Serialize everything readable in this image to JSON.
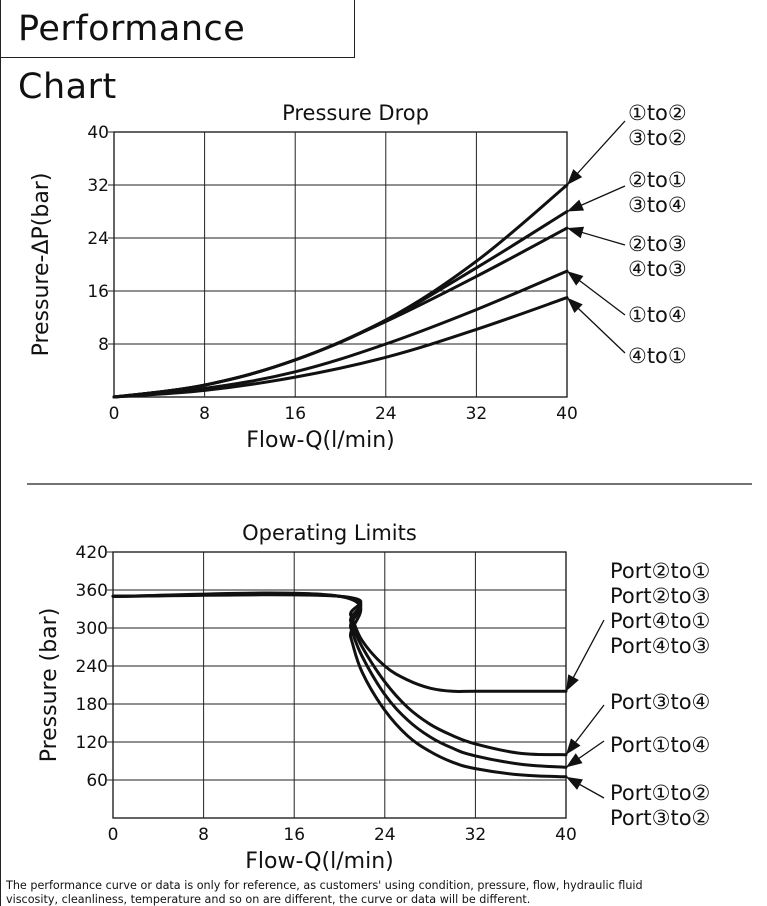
{
  "page_title": "Performance Chart",
  "footnote": {
    "line1": "The performance curve or data is only for reference, as customers' using condition, pressure, flow, hydraulic fluid",
    "line2": "viscosity, cleanliness, temperature and so on are different, the curve or data will be different."
  },
  "chart_data": [
    {
      "type": "line",
      "title": "Pressure Drop",
      "xlabel": "Flow-Q(l/min)",
      "ylabel": "Pressure-ΔP(bar)",
      "xlim": [
        0,
        40
      ],
      "ylim": [
        0,
        40
      ],
      "xticks": [
        0,
        8,
        16,
        24,
        32,
        40
      ],
      "yticks": [
        8,
        16,
        24,
        32,
        40
      ],
      "xtick_labels": [
        "0",
        "8",
        "16",
        "24",
        "32",
        "40"
      ],
      "ytick_labels": [
        "8",
        "16",
        "24",
        "32",
        "40"
      ],
      "grid": true,
      "series": [
        {
          "name": "①to② ③to②",
          "x": [
            0,
            8,
            16,
            24,
            32,
            40
          ],
          "y": [
            0,
            1.8,
            5.6,
            11.6,
            20.5,
            32
          ]
        },
        {
          "name": "②to① ③to④",
          "x": [
            0,
            8,
            16,
            24,
            32,
            40
          ],
          "y": [
            0,
            1.8,
            5.6,
            11.6,
            19.5,
            28
          ]
        },
        {
          "name": "②to③ ④to③",
          "x": [
            0,
            8,
            16,
            24,
            32,
            40
          ],
          "y": [
            0,
            1.8,
            5.6,
            11.4,
            18.2,
            25.5
          ]
        },
        {
          "name": "①to④",
          "x": [
            0,
            8,
            16,
            24,
            32,
            40
          ],
          "y": [
            0,
            1.3,
            3.8,
            8,
            13.2,
            19
          ]
        },
        {
          "name": "④to①",
          "x": [
            0,
            8,
            16,
            24,
            32,
            40
          ],
          "y": [
            0,
            1,
            3,
            6,
            10.2,
            15
          ]
        }
      ]
    },
    {
      "type": "line",
      "title": "Operating Limits",
      "xlabel": "Flow-Q(l/min)",
      "ylabel": "Pressure (bar)",
      "xlim": [
        0,
        40
      ],
      "ylim": [
        0,
        420
      ],
      "xticks": [
        0,
        8,
        16,
        24,
        32,
        40
      ],
      "yticks": [
        60,
        120,
        180,
        240,
        300,
        360,
        420
      ],
      "xtick_labels": [
        "0",
        "8",
        "16",
        "24",
        "32",
        "40"
      ],
      "ytick_labels": [
        "60",
        "120",
        "180",
        "240",
        "300",
        "360",
        "420"
      ],
      "grid": true,
      "series": [
        {
          "name": "Port②to① Port②to③ Port④to① Port④to③",
          "x": [
            0,
            20,
            21,
            22,
            24,
            26,
            28,
            30,
            32,
            40
          ],
          "y": [
            350,
            350,
            320,
            280,
            240,
            218,
            205,
            200,
            200,
            200
          ]
        },
        {
          "name": "Port③to④",
          "x": [
            0,
            20,
            21,
            22,
            24,
            26,
            28,
            30,
            32,
            36,
            40
          ],
          "y": [
            350,
            350,
            310,
            270,
            215,
            175,
            148,
            130,
            117,
            102,
            100
          ]
        },
        {
          "name": "Port①to④",
          "x": [
            0,
            20,
            21,
            22,
            24,
            26,
            28,
            30,
            32,
            36,
            40
          ],
          "y": [
            350,
            350,
            300,
            255,
            195,
            155,
            128,
            110,
            98,
            85,
            80
          ]
        },
        {
          "name": "Port①to② Port③to②",
          "x": [
            0,
            20,
            21,
            22,
            24,
            26,
            28,
            30,
            32,
            36,
            40
          ],
          "y": [
            350,
            350,
            285,
            230,
            170,
            130,
            105,
            88,
            78,
            68,
            65
          ]
        }
      ]
    }
  ],
  "legend_labels": {
    "top": [
      {
        "key": "p12",
        "lines": [
          "①to②",
          "③to②"
        ]
      },
      {
        "key": "p21",
        "lines": [
          "②to①",
          "③to④"
        ]
      },
      {
        "key": "p23",
        "lines": [
          "②to③",
          "④to③"
        ]
      },
      {
        "key": "p14",
        "lines": [
          "①to④"
        ]
      },
      {
        "key": "p41",
        "lines": [
          "④to①"
        ]
      }
    ],
    "bottom": [
      {
        "key": "l1",
        "lines": [
          "Port②to①",
          "Port②to③",
          "Port④to①",
          "Port④to③"
        ]
      },
      {
        "key": "l2",
        "lines": [
          "Port③to④"
        ]
      },
      {
        "key": "l3",
        "lines": [
          "Port①to④"
        ]
      },
      {
        "key": "l4",
        "lines": [
          "Port①to②",
          "Port③to②"
        ]
      }
    ]
  }
}
